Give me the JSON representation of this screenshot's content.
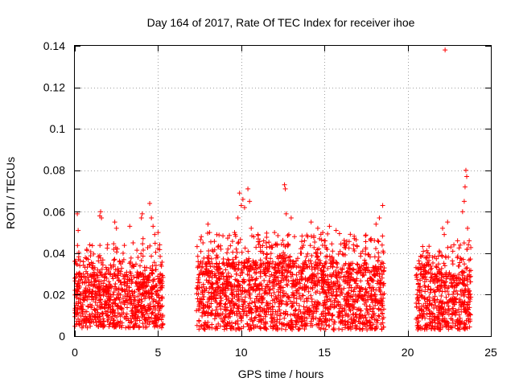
{
  "chart_data": {
    "type": "scatter",
    "title": "Day 164 of 2017, Rate Of TEC Index for receiver ihoe",
    "xlabel": "GPS time / hours",
    "ylabel": "ROTI / TECUs",
    "xlim": [
      0,
      25
    ],
    "ylim": [
      0,
      0.14
    ],
    "xticks": [
      0,
      5,
      10,
      15,
      20,
      25
    ],
    "xtick_labels": [
      "0",
      "5",
      "10",
      "15",
      "20",
      "25"
    ],
    "yticks": [
      0,
      0.02,
      0.04,
      0.06,
      0.08,
      0.1,
      0.12,
      0.14
    ],
    "ytick_labels": [
      "0",
      "0.02",
      "0.04",
      "0.06",
      "0.08",
      "0.1",
      "0.12",
      "0.14"
    ],
    "grid": true,
    "marker": "+",
    "color": "#ff0000",
    "series": [
      {
        "segments": [
          {
            "x_range": [
              0,
              5.3
            ],
            "typical_range": [
              0.004,
              0.03
            ]
          },
          {
            "x_range": [
              7.3,
              18.6
            ],
            "typical_range": [
              0.003,
              0.035
            ]
          },
          {
            "x_range": [
              20.5,
              23.8
            ],
            "typical_range": [
              0.003,
              0.03
            ]
          }
        ],
        "points": [
          [
            0.15,
            0.059
          ],
          [
            0.2,
            0.051
          ],
          [
            0.3,
            0.034
          ],
          [
            0.8,
            0.037
          ],
          [
            0.9,
            0.044
          ],
          [
            1.2,
            0.033
          ],
          [
            1.5,
            0.058
          ],
          [
            1.55,
            0.06
          ],
          [
            1.6,
            0.057
          ],
          [
            2.4,
            0.055
          ],
          [
            2.5,
            0.052
          ],
          [
            2.9,
            0.04
          ],
          [
            3.3,
            0.053
          ],
          [
            3.5,
            0.045
          ],
          [
            3.8,
            0.038
          ],
          [
            4.0,
            0.057
          ],
          [
            4.05,
            0.059
          ],
          [
            4.1,
            0.047
          ],
          [
            4.5,
            0.064
          ],
          [
            4.6,
            0.057
          ],
          [
            4.7,
            0.053
          ],
          [
            4.8,
            0.049
          ],
          [
            5.0,
            0.05
          ],
          [
            5.1,
            0.044
          ],
          [
            7.6,
            0.048
          ],
          [
            7.7,
            0.045
          ],
          [
            8.0,
            0.054
          ],
          [
            8.1,
            0.05
          ],
          [
            8.6,
            0.043
          ],
          [
            9.2,
            0.042
          ],
          [
            9.6,
            0.05
          ],
          [
            9.8,
            0.057
          ],
          [
            9.9,
            0.069
          ],
          [
            10.0,
            0.063
          ],
          [
            10.1,
            0.066
          ],
          [
            10.2,
            0.062
          ],
          [
            10.4,
            0.071
          ],
          [
            10.5,
            0.065
          ],
          [
            10.6,
            0.052
          ],
          [
            11.0,
            0.049
          ],
          [
            11.5,
            0.045
          ],
          [
            12.0,
            0.05
          ],
          [
            12.6,
            0.073
          ],
          [
            12.65,
            0.071
          ],
          [
            12.7,
            0.059
          ],
          [
            13.0,
            0.057
          ],
          [
            13.2,
            0.048
          ],
          [
            13.8,
            0.046
          ],
          [
            14.2,
            0.055
          ],
          [
            14.6,
            0.052
          ],
          [
            14.9,
            0.05
          ],
          [
            15.3,
            0.053
          ],
          [
            15.7,
            0.051
          ],
          [
            16.2,
            0.045
          ],
          [
            16.8,
            0.047
          ],
          [
            17.3,
            0.041
          ],
          [
            17.8,
            0.047
          ],
          [
            18.1,
            0.054
          ],
          [
            18.3,
            0.057
          ],
          [
            18.5,
            0.063
          ],
          [
            20.7,
            0.035
          ],
          [
            21.0,
            0.033
          ],
          [
            21.5,
            0.038
          ],
          [
            21.9,
            0.041
          ],
          [
            22.1,
            0.052
          ],
          [
            22.2,
            0.049
          ],
          [
            22.25,
            0.138
          ],
          [
            22.4,
            0.055
          ],
          [
            22.6,
            0.043
          ],
          [
            23.0,
            0.046
          ],
          [
            23.3,
            0.06
          ],
          [
            23.4,
            0.065
          ],
          [
            23.45,
            0.072
          ],
          [
            23.5,
            0.08
          ],
          [
            23.55,
            0.077
          ],
          [
            23.6,
            0.052
          ],
          [
            23.7,
            0.046
          ]
        ]
      }
    ]
  }
}
